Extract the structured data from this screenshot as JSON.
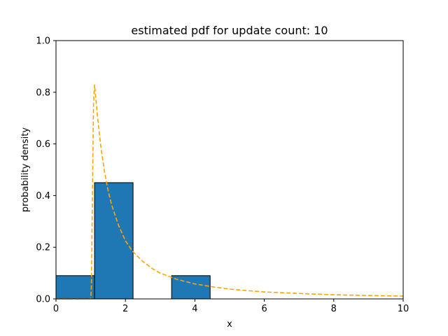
{
  "chart_data": {
    "type": "bar",
    "title": "estimated pdf for update count: 10",
    "xlabel": "x",
    "ylabel": "probability density",
    "xlim": [
      0,
      10
    ],
    "ylim": [
      0,
      1.0
    ],
    "xticks": [
      0,
      2,
      4,
      6,
      8,
      10
    ],
    "xtick_labels": [
      "0",
      "2",
      "4",
      "6",
      "8",
      "10"
    ],
    "yticks": [
      0,
      0.2,
      0.4,
      0.6,
      0.8,
      1.0
    ],
    "ytick_labels": [
      "0.0",
      "0.2",
      "0.4",
      "0.6",
      "0.8",
      "1.0"
    ],
    "grid": false,
    "histogram": {
      "bins": [
        {
          "x0": 0.0,
          "x1": 1.11,
          "density": 0.09
        },
        {
          "x0": 1.11,
          "x1": 2.22,
          "density": 0.45
        },
        {
          "x0": 2.22,
          "x1": 3.33,
          "density": 0.0
        },
        {
          "x0": 3.33,
          "x1": 4.44,
          "density": 0.09
        }
      ],
      "color": "#1f77b4",
      "edgecolor": "#000000"
    },
    "curve": {
      "style": "dashed",
      "color": "#ffa500",
      "x": [
        0.0,
        1.0,
        1.02,
        1.05,
        1.08,
        1.11,
        1.2,
        1.3,
        1.4,
        1.5,
        1.6,
        1.8,
        2.0,
        2.2,
        2.5,
        2.8,
        3.0,
        3.5,
        4.0,
        4.5,
        5.0,
        5.5,
        6.0,
        7.0,
        8.0,
        9.0,
        10.0
      ],
      "y": [
        0.0,
        0.0,
        0.05,
        0.4,
        0.75,
        0.83,
        0.7,
        0.58,
        0.49,
        0.42,
        0.365,
        0.285,
        0.225,
        0.185,
        0.145,
        0.115,
        0.1,
        0.075,
        0.058,
        0.047,
        0.038,
        0.032,
        0.027,
        0.021,
        0.016,
        0.013,
        0.011
      ]
    }
  }
}
